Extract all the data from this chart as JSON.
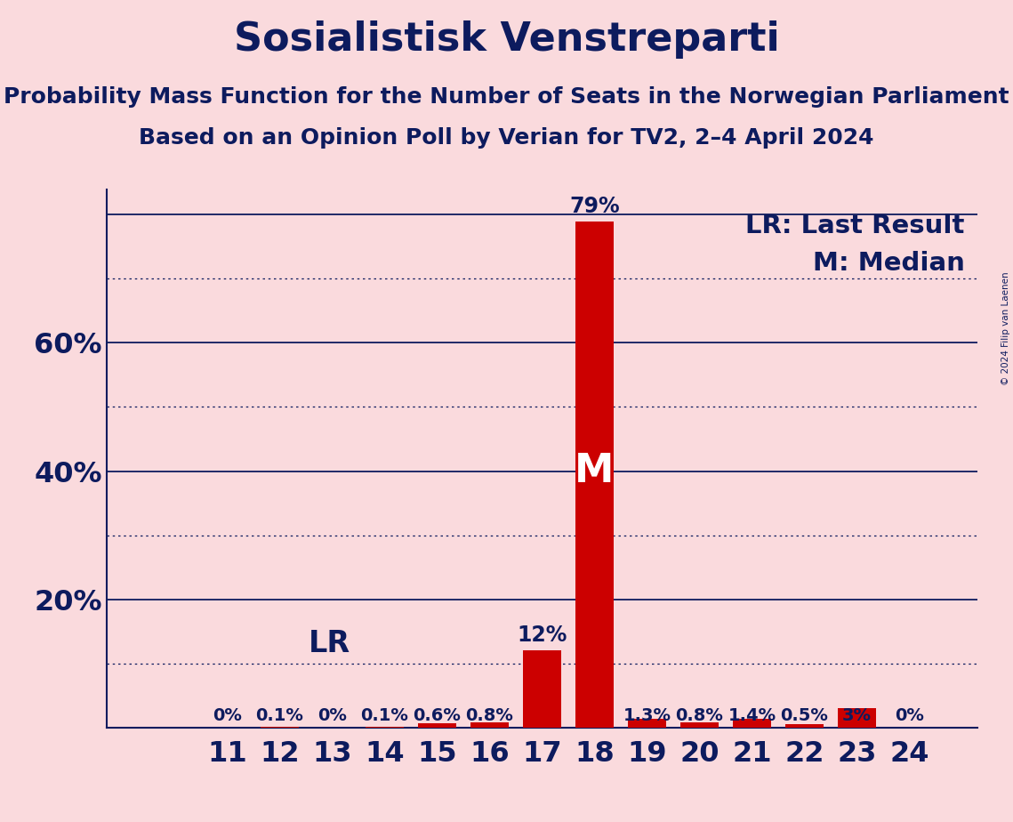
{
  "title": "Sosialistisk Venstreparti",
  "subtitle1": "Probability Mass Function for the Number of Seats in the Norwegian Parliament",
  "subtitle2": "Based on an Opinion Poll by Verian for TV2, 2–4 April 2024",
  "copyright": "© 2024 Filip van Laenen",
  "seats": [
    11,
    12,
    13,
    14,
    15,
    16,
    17,
    18,
    19,
    20,
    21,
    22,
    23,
    24
  ],
  "probabilities": [
    0.0,
    0.1,
    0.0,
    0.1,
    0.6,
    0.8,
    12.0,
    79.0,
    1.3,
    0.8,
    1.4,
    0.5,
    3.0,
    0.0
  ],
  "labels": [
    "0%",
    "0.1%",
    "0%",
    "0.1%",
    "0.6%",
    "0.8%",
    "12%",
    "79%",
    "1.3%",
    "0.8%",
    "1.4%",
    "0.5%",
    "3%",
    "0%"
  ],
  "bar_color": "#cc0000",
  "background_color": "#fadadd",
  "text_color": "#0d1b5e",
  "median_seat": 18,
  "last_result_seat": 13,
  "ylim_max": 84,
  "yticks_labeled": [
    20,
    40,
    60
  ],
  "solid_gridlines": [
    20,
    40,
    60,
    80
  ],
  "dotted_gridlines": [
    10,
    30,
    50,
    70
  ],
  "legend_lr": "LR: Last Result",
  "legend_m": "M: Median",
  "title_fontsize": 32,
  "subtitle_fontsize": 18,
  "axis_tick_fontsize": 23,
  "bar_label_fontsize_large": 17,
  "bar_label_fontsize_small": 14,
  "legend_fontsize": 21,
  "lr_label_fontsize": 24,
  "m_label_fontsize": 32
}
